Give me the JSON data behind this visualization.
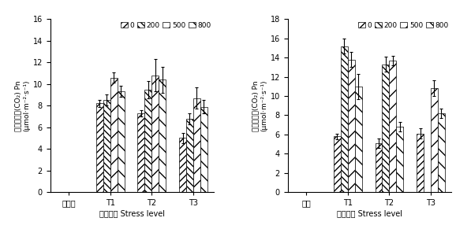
{
  "left_chart": {
    "plant_label": "黑麦草",
    "xlabel": "胁迫强度 Stress level",
    "ylabel1": "净光合速率(CO₂) Pn",
    "ylabel2": "(μmol·m⁻²·s⁻¹)",
    "ylim": [
      0,
      16
    ],
    "yticks": [
      0,
      2,
      4,
      6,
      8,
      10,
      12,
      14,
      16
    ],
    "groups": [
      "T1",
      "T2",
      "T3"
    ],
    "series_labels": [
      "0",
      "200",
      "500",
      "800"
    ],
    "values": [
      [
        8.2,
        7.3,
        5.0
      ],
      [
        8.5,
        9.5,
        6.8
      ],
      [
        10.6,
        10.8,
        8.7
      ],
      [
        9.3,
        10.4,
        7.9
      ]
    ],
    "errors": [
      [
        0.3,
        0.3,
        0.5
      ],
      [
        0.5,
        0.8,
        0.5
      ],
      [
        0.5,
        1.5,
        1.0
      ],
      [
        0.5,
        1.2,
        0.6
      ]
    ]
  },
  "right_chart": {
    "plant_label": "苜草",
    "xlabel": "胁迫强度 Stress level",
    "ylabel1": "净光合速率(CO₂) Pn",
    "ylabel2": "(μmol·m⁻²·s⁻¹)",
    "ylim": [
      0,
      18
    ],
    "yticks": [
      0,
      2,
      4,
      6,
      8,
      10,
      12,
      14,
      16,
      18
    ],
    "groups": [
      "T1",
      "T2",
      "T3"
    ],
    "series_labels": [
      "0",
      "200",
      "500",
      "800"
    ],
    "values": [
      [
        5.8,
        5.1,
        6.1
      ],
      [
        15.2,
        13.3,
        0.0
      ],
      [
        13.8,
        13.7,
        10.8
      ],
      [
        11.0,
        6.8,
        8.2
      ]
    ],
    "errors": [
      [
        0.3,
        0.5,
        0.5
      ],
      [
        0.8,
        0.8,
        0.0
      ],
      [
        0.8,
        0.5,
        0.8
      ],
      [
        1.3,
        0.5,
        0.5
      ]
    ]
  },
  "hatch_patterns": [
    "////",
    "\\\\\\\\",
    "////",
    "\\\\\\\\"
  ],
  "hatch_densities": [
    6,
    6,
    3,
    3
  ],
  "edge_color": "#000000",
  "bar_width": 0.17,
  "legend_labels": [
    "0",
    "200",
    "500",
    "800"
  ],
  "font_size": 7
}
